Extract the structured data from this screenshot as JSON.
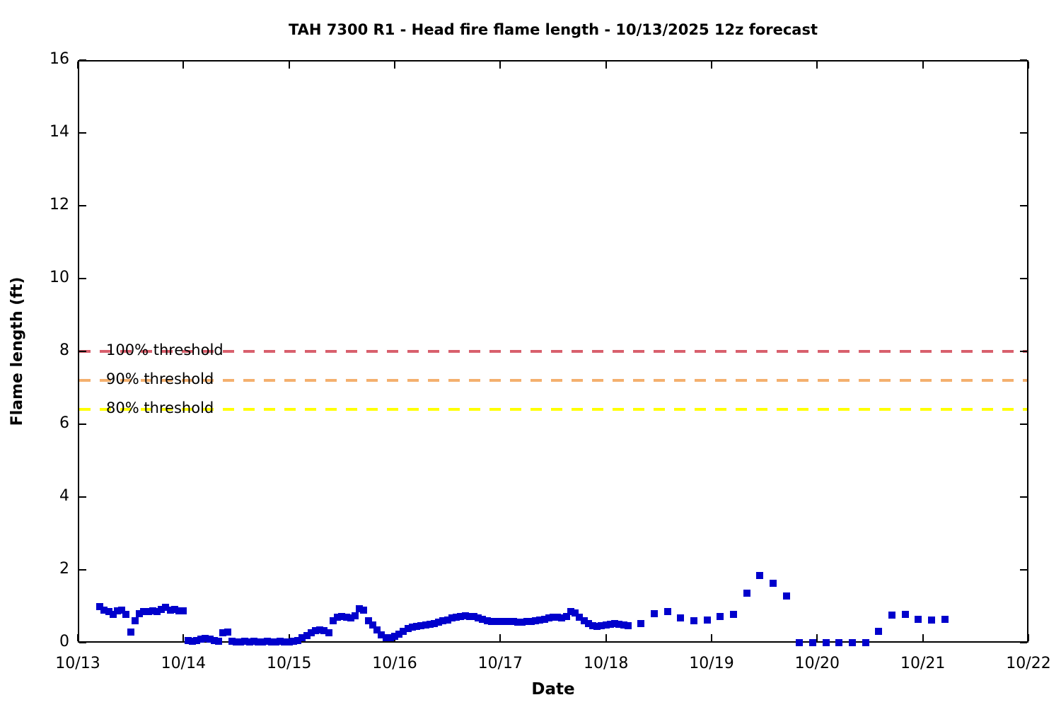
{
  "chart_data": {
    "type": "scatter",
    "title": "TAH 7300 R1 - Head fire flame length - 10/13/2025 12z forecast",
    "xlabel": "Date",
    "ylabel": "Flame length (ft)",
    "x_tick_labels": [
      "10/13",
      "10/14",
      "10/15",
      "10/16",
      "10/17",
      "10/18",
      "10/19",
      "10/20",
      "10/21",
      "10/22"
    ],
    "x_range_days": 9,
    "y_ticks": [
      "0",
      "2",
      "4",
      "6",
      "8",
      "10",
      "12",
      "14",
      "16"
    ],
    "ylim": [
      0,
      16
    ],
    "grid": false,
    "legend_position": "none",
    "background_color": "#ffffff",
    "thresholds": [
      {
        "label": "100% threshold",
        "value": 8.0,
        "color": "#D8606D"
      },
      {
        "label": "90% threshold",
        "value": 7.2,
        "color": "#F4B06E"
      },
      {
        "label": "80% threshold",
        "value": 6.4,
        "color": "#FFFF00"
      }
    ],
    "series": [
      {
        "name": "head-fire-flame-length",
        "marker": "square",
        "color": "#0000CC",
        "x_unit": "hours_since_2025-10-13_00:00",
        "points": [
          [
            5,
            0.99
          ],
          [
            6,
            0.9
          ],
          [
            7,
            0.85
          ],
          [
            8,
            0.78
          ],
          [
            9,
            0.88
          ],
          [
            10,
            0.9
          ],
          [
            11,
            0.78
          ],
          [
            12,
            0.29
          ],
          [
            13,
            0.61
          ],
          [
            14,
            0.8
          ],
          [
            15,
            0.85
          ],
          [
            16,
            0.86
          ],
          [
            17,
            0.87
          ],
          [
            18,
            0.85
          ],
          [
            19,
            0.92
          ],
          [
            20,
            0.98
          ],
          [
            21,
            0.9
          ],
          [
            22,
            0.91
          ],
          [
            23,
            0.88
          ],
          [
            24,
            0.87
          ],
          [
            25,
            0.05
          ],
          [
            26,
            0.04
          ],
          [
            27,
            0.05
          ],
          [
            28,
            0.1
          ],
          [
            29,
            0.12
          ],
          [
            30,
            0.09
          ],
          [
            31,
            0.05
          ],
          [
            32,
            0.04
          ],
          [
            33,
            0.28
          ],
          [
            34,
            0.3
          ],
          [
            35,
            0.04
          ],
          [
            36,
            0.02
          ],
          [
            37,
            0.02
          ],
          [
            38,
            0.03
          ],
          [
            39,
            0.02
          ],
          [
            40,
            0.03
          ],
          [
            41,
            0.02
          ],
          [
            42,
            0.02
          ],
          [
            43,
            0.03
          ],
          [
            44,
            0.02
          ],
          [
            45,
            0.02
          ],
          [
            46,
            0.03
          ],
          [
            47,
            0.02
          ],
          [
            48,
            0.02
          ],
          [
            49,
            0.03
          ],
          [
            50,
            0.06
          ],
          [
            51,
            0.13
          ],
          [
            52,
            0.2
          ],
          [
            53,
            0.28
          ],
          [
            54,
            0.33
          ],
          [
            55,
            0.34
          ],
          [
            56,
            0.33
          ],
          [
            57,
            0.28
          ],
          [
            58,
            0.6
          ],
          [
            59,
            0.7
          ],
          [
            60,
            0.72
          ],
          [
            61,
            0.7
          ],
          [
            62,
            0.67
          ],
          [
            63,
            0.73
          ],
          [
            64,
            0.93
          ],
          [
            65,
            0.89
          ],
          [
            66,
            0.61
          ],
          [
            67,
            0.48
          ],
          [
            68,
            0.34
          ],
          [
            69,
            0.21
          ],
          [
            70,
            0.13
          ],
          [
            71,
            0.14
          ],
          [
            72,
            0.17
          ],
          [
            73,
            0.24
          ],
          [
            74,
            0.32
          ],
          [
            75,
            0.39
          ],
          [
            76,
            0.43
          ],
          [
            77,
            0.45
          ],
          [
            78,
            0.47
          ],
          [
            79,
            0.49
          ],
          [
            80,
            0.51
          ],
          [
            81,
            0.53
          ],
          [
            82,
            0.56
          ],
          [
            83,
            0.6
          ],
          [
            84,
            0.63
          ],
          [
            85,
            0.67
          ],
          [
            86,
            0.7
          ],
          [
            87,
            0.72
          ],
          [
            88,
            0.73
          ],
          [
            89,
            0.72
          ],
          [
            90,
            0.71
          ],
          [
            91,
            0.68
          ],
          [
            92,
            0.64
          ],
          [
            93,
            0.61
          ],
          [
            94,
            0.59
          ],
          [
            95,
            0.58
          ],
          [
            96,
            0.58
          ],
          [
            97,
            0.58
          ],
          [
            98,
            0.58
          ],
          [
            99,
            0.58
          ],
          [
            100,
            0.57
          ],
          [
            101,
            0.57
          ],
          [
            102,
            0.58
          ],
          [
            103,
            0.58
          ],
          [
            104,
            0.6
          ],
          [
            105,
            0.62
          ],
          [
            106,
            0.64
          ],
          [
            107,
            0.67
          ],
          [
            108,
            0.7
          ],
          [
            109,
            0.7
          ],
          [
            110,
            0.68
          ],
          [
            111,
            0.72
          ],
          [
            112,
            0.85
          ],
          [
            113,
            0.82
          ],
          [
            114,
            0.7
          ],
          [
            115,
            0.61
          ],
          [
            116,
            0.52
          ],
          [
            117,
            0.46
          ],
          [
            118,
            0.45
          ],
          [
            119,
            0.46
          ],
          [
            120,
            0.49
          ],
          [
            121,
            0.51
          ],
          [
            122,
            0.52
          ],
          [
            123,
            0.51
          ],
          [
            124,
            0.49
          ],
          [
            125,
            0.47
          ],
          [
            128,
            0.53
          ],
          [
            131,
            0.79
          ],
          [
            134,
            0.85
          ],
          [
            137,
            0.68
          ],
          [
            140,
            0.6
          ],
          [
            143,
            0.63
          ],
          [
            146,
            0.71
          ],
          [
            149,
            0.77
          ],
          [
            152,
            1.36
          ],
          [
            155,
            1.85
          ],
          [
            158,
            1.64
          ],
          [
            161,
            1.28
          ],
          [
            164,
            0
          ],
          [
            167,
            0
          ],
          [
            170,
            0
          ],
          [
            173,
            0
          ],
          [
            176,
            0
          ],
          [
            179,
            0
          ],
          [
            182,
            0.32
          ],
          [
            185,
            0.75
          ],
          [
            188,
            0.78
          ],
          [
            191,
            0.65
          ],
          [
            194,
            0.62
          ],
          [
            197,
            0.65
          ]
        ]
      }
    ]
  }
}
